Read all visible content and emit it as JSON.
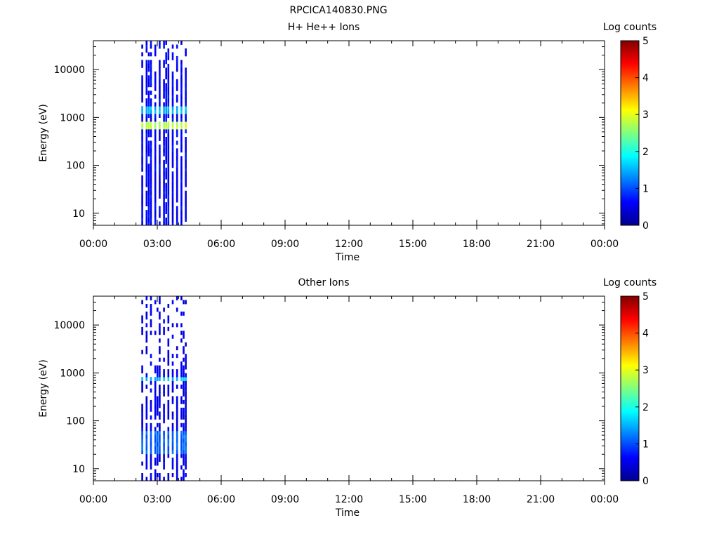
{
  "page_title": "RPCICA140830.PNG",
  "chart_data": [
    {
      "type": "heatmap",
      "title": "H+ He++ Ions",
      "xlabel": "Time",
      "ylabel": "Energy (eV)",
      "colorbar_label": "Log counts",
      "x_ticks": [
        "00:00",
        "03:00",
        "06:00",
        "09:00",
        "12:00",
        "15:00",
        "18:00",
        "21:00",
        "00:00"
      ],
      "x_range_hours": [
        0,
        24
      ],
      "y_scale": "log",
      "y_ticks": [
        "10",
        "100",
        "1000",
        "10000"
      ],
      "y_range": [
        5.6,
        40000
      ],
      "colorbar_ticks": [
        "0",
        "1",
        "2",
        "3",
        "4",
        "5"
      ],
      "colorbar_range": [
        0,
        5
      ],
      "data_interval_hours": [
        2.25,
        4.5
      ],
      "bands": [
        {
          "energy_low": 550,
          "energy_high": 850,
          "log_counts": 2.8
        },
        {
          "energy_low": 1200,
          "energy_high": 1800,
          "log_counts": 1.5
        },
        {
          "energy_low": 5.6,
          "energy_high": 40000,
          "log_counts": 0.6
        }
      ]
    },
    {
      "type": "heatmap",
      "title": "Other Ions",
      "xlabel": "Time",
      "ylabel": "Energy (eV)",
      "colorbar_label": "Log counts",
      "x_ticks": [
        "00:00",
        "03:00",
        "06:00",
        "09:00",
        "12:00",
        "15:00",
        "18:00",
        "21:00",
        "00:00"
      ],
      "x_range_hours": [
        0,
        24
      ],
      "y_scale": "log",
      "y_ticks": [
        "10",
        "100",
        "1000",
        "10000"
      ],
      "y_range": [
        5.6,
        40000
      ],
      "colorbar_ticks": [
        "0",
        "1",
        "2",
        "3",
        "4",
        "5"
      ],
      "colorbar_range": [
        0,
        5
      ],
      "data_interval_hours": [
        2.25,
        4.5
      ],
      "bands": [
        {
          "energy_low": 650,
          "energy_high": 900,
          "log_counts": 1.6
        },
        {
          "energy_low": 20,
          "energy_high": 60,
          "log_counts": 1.1
        },
        {
          "energy_low": 5.6,
          "energy_high": 40000,
          "log_counts": 0.5
        }
      ]
    }
  ]
}
